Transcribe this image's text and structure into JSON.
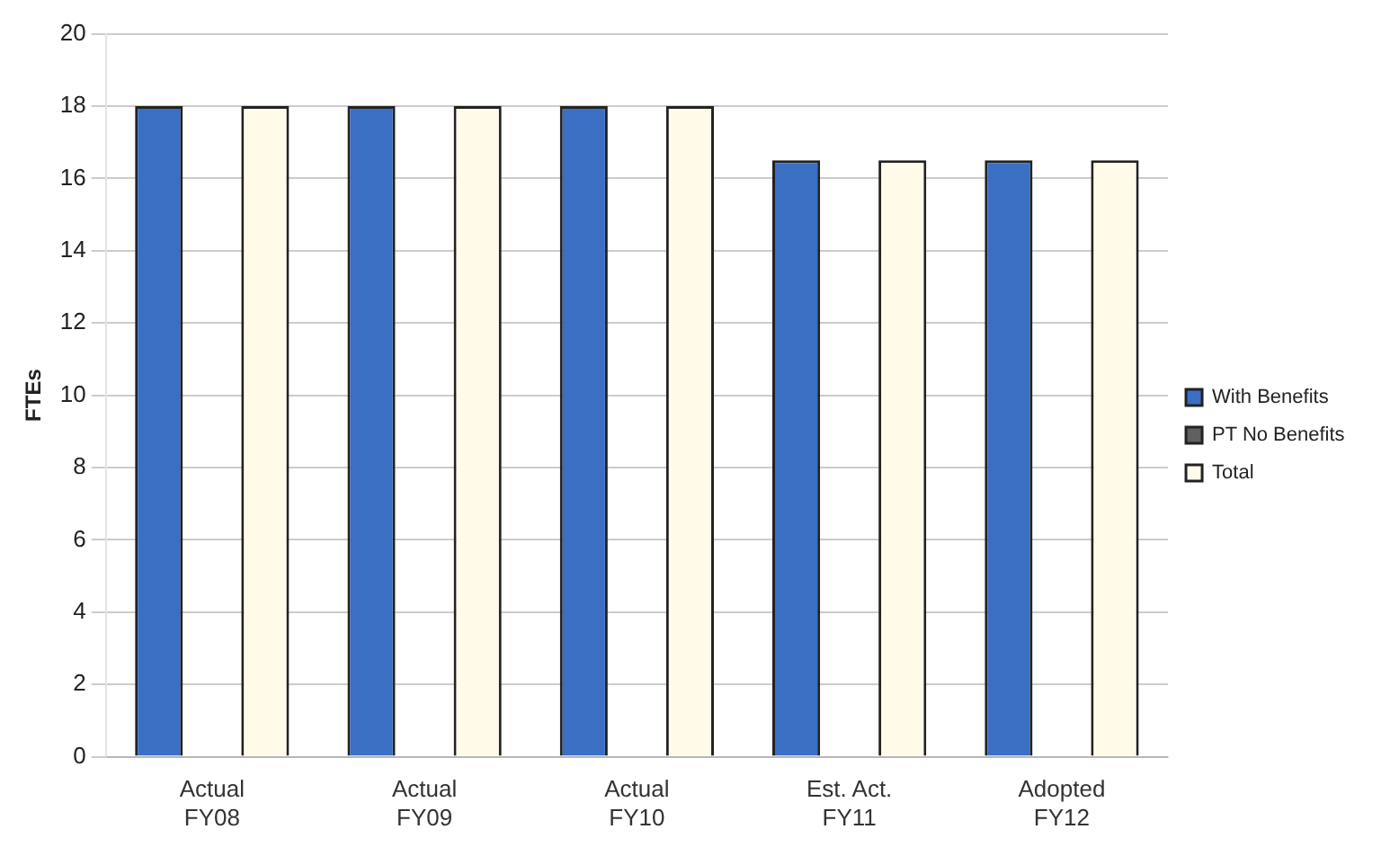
{
  "chart_data": {
    "type": "bar",
    "ylabel": "FTEs",
    "categories": [
      "Actual\nFY08",
      "Actual\nFY09",
      "Actual\nFY10",
      "Est. Act.\nFY11",
      "Adopted\nFY12"
    ],
    "series": [
      {
        "name": "With Benefits",
        "color": "#3a6fc4",
        "values": [
          18,
          18,
          18,
          16.5,
          16.5
        ]
      },
      {
        "name": "PT No Benefits",
        "color": "#606060",
        "values": [
          0,
          0,
          0,
          0,
          0
        ]
      },
      {
        "name": "Total",
        "color": "#fffbe8",
        "values": [
          18,
          18,
          18,
          16.5,
          16.5
        ]
      }
    ],
    "ylim": [
      0,
      20
    ],
    "yticks": [
      0,
      2,
      4,
      6,
      8,
      10,
      12,
      14,
      16,
      18,
      20
    ],
    "grid": "y",
    "legend": "right"
  }
}
